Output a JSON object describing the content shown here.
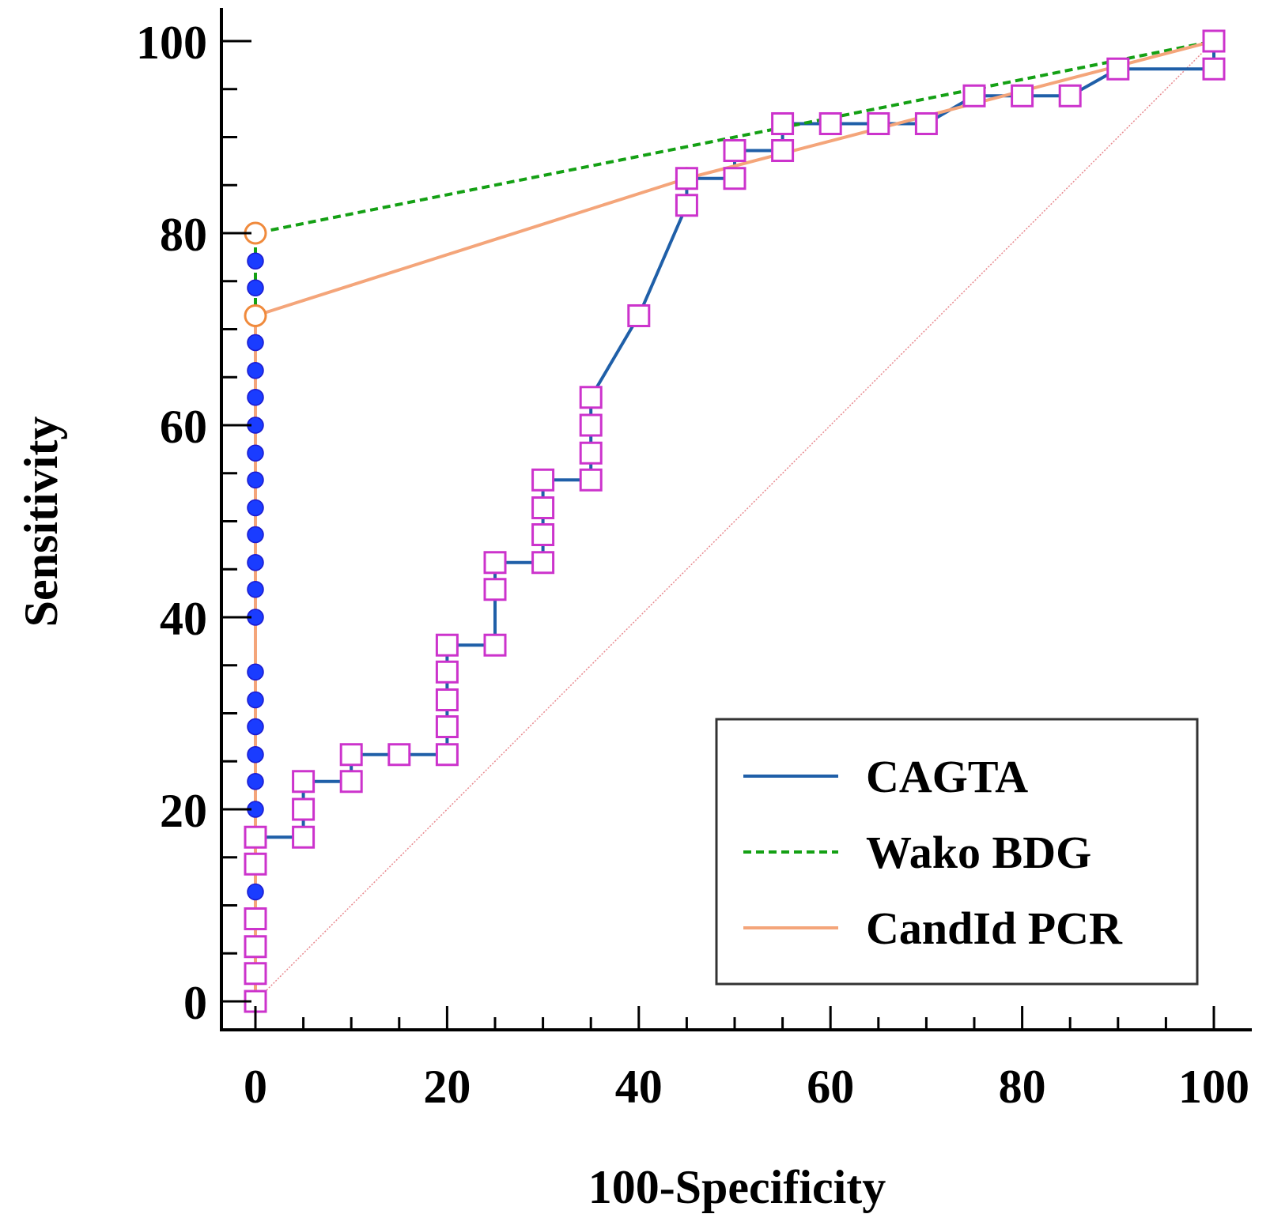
{
  "chart_data": {
    "type": "line",
    "title": "",
    "xlabel": "100-Specificity",
    "ylabel": "Sensitivity",
    "xlim": [
      0,
      100
    ],
    "ylim": [
      0,
      100
    ],
    "x_ticks": [
      0,
      20,
      40,
      60,
      80,
      100
    ],
    "y_ticks": [
      0,
      20,
      40,
      60,
      80,
      100
    ],
    "grid": false,
    "legend_position": "bottom-right",
    "reference_line": {
      "from": [
        0,
        0
      ],
      "to": [
        100,
        100
      ],
      "color": "#e8898f"
    },
    "series": [
      {
        "name": "CAGTA",
        "color": "#1f5fa8",
        "dash": "",
        "marker": "square",
        "marker_color": "#cc33cc",
        "x": [
          0,
          0,
          0,
          0,
          0,
          0,
          0,
          5,
          5,
          5,
          10,
          10,
          15,
          20,
          20,
          20,
          20,
          20,
          20,
          25,
          25,
          25,
          30,
          30,
          30,
          30,
          30,
          35,
          35,
          35,
          35,
          35,
          40,
          45,
          45,
          45,
          50,
          50,
          55,
          55,
          60,
          65,
          70,
          75,
          80,
          85,
          90,
          100,
          100
        ],
        "y": [
          0,
          2.9,
          5.7,
          8.6,
          11.4,
          14.3,
          17.1,
          17.1,
          20,
          22.9,
          22.9,
          25.7,
          25.7,
          25.7,
          28.6,
          31.4,
          34.3,
          37.1,
          37.1,
          37.1,
          42.9,
          45.7,
          45.7,
          48.6,
          51.4,
          54.3,
          54.3,
          54.3,
          57.1,
          60,
          62.9,
          62.9,
          71.4,
          82.9,
          85.7,
          85.7,
          85.7,
          88.6,
          88.6,
          91.4,
          91.4,
          91.4,
          91.4,
          94.3,
          94.3,
          94.3,
          97.1,
          97.1,
          100
        ],
        "marker_points": [
          [
            0,
            0
          ],
          [
            0,
            2.9
          ],
          [
            0,
            5.7
          ],
          [
            0,
            8.6
          ],
          [
            0,
            14.3
          ],
          [
            0,
            17.1
          ],
          [
            5,
            17.1
          ],
          [
            5,
            20
          ],
          [
            5,
            22.9
          ],
          [
            10,
            22.9
          ],
          [
            10,
            25.7
          ],
          [
            15,
            25.7
          ],
          [
            20,
            25.7
          ],
          [
            20,
            28.6
          ],
          [
            20,
            31.4
          ],
          [
            20,
            34.3
          ],
          [
            20,
            37.1
          ],
          [
            25,
            37.1
          ],
          [
            25,
            42.9
          ],
          [
            25,
            45.7
          ],
          [
            30,
            45.7
          ],
          [
            30,
            48.6
          ],
          [
            30,
            51.4
          ],
          [
            30,
            54.3
          ],
          [
            35,
            54.3
          ],
          [
            35,
            57.1
          ],
          [
            35,
            60
          ],
          [
            35,
            62.9
          ],
          [
            40,
            71.4
          ],
          [
            45,
            82.9
          ],
          [
            45,
            85.7
          ],
          [
            50,
            85.7
          ],
          [
            50,
            88.6
          ],
          [
            55,
            88.6
          ],
          [
            55,
            91.4
          ],
          [
            60,
            91.4
          ],
          [
            65,
            91.4
          ],
          [
            70,
            91.4
          ],
          [
            75,
            94.3
          ],
          [
            80,
            94.3
          ],
          [
            85,
            94.3
          ],
          [
            90,
            97.1
          ],
          [
            100,
            97.1
          ],
          [
            100,
            100
          ]
        ]
      },
      {
        "name": "Wako BDG",
        "color": "#14a014",
        "dash": "10,6",
        "marker": "circle",
        "marker_color": "#1a3cff",
        "x": [
          0,
          0,
          100
        ],
        "y": [
          0,
          80,
          100
        ],
        "marker_points": [
          [
            0,
            0
          ],
          [
            0,
            2.9
          ],
          [
            0,
            5.7
          ],
          [
            0,
            8.6
          ],
          [
            0,
            11.4
          ],
          [
            0,
            14.3
          ],
          [
            0,
            17.1
          ],
          [
            0,
            20
          ],
          [
            0,
            22.9
          ],
          [
            0,
            25.7
          ],
          [
            0,
            28.6
          ],
          [
            0,
            31.4
          ],
          [
            0,
            34.3
          ],
          [
            0,
            40
          ],
          [
            0,
            42.9
          ],
          [
            0,
            45.7
          ],
          [
            0,
            48.6
          ],
          [
            0,
            51.4
          ],
          [
            0,
            54.3
          ],
          [
            0,
            57.1
          ],
          [
            0,
            60
          ],
          [
            0,
            62.9
          ],
          [
            0,
            65.7
          ],
          [
            0,
            68.6
          ],
          [
            0,
            74.3
          ],
          [
            0,
            77.1
          ],
          [
            100,
            100
          ]
        ]
      },
      {
        "name": "CandId PCR",
        "color": "#f4a57a",
        "dash": "",
        "marker": "open-circle",
        "marker_color": "#f08a3c",
        "x": [
          0,
          0,
          45,
          100
        ],
        "y": [
          0,
          71.4,
          85.7,
          100
        ],
        "marker_points": [
          [
            0,
            80
          ],
          [
            0,
            71.4
          ],
          [
            45,
            85.7
          ]
        ]
      }
    ]
  }
}
